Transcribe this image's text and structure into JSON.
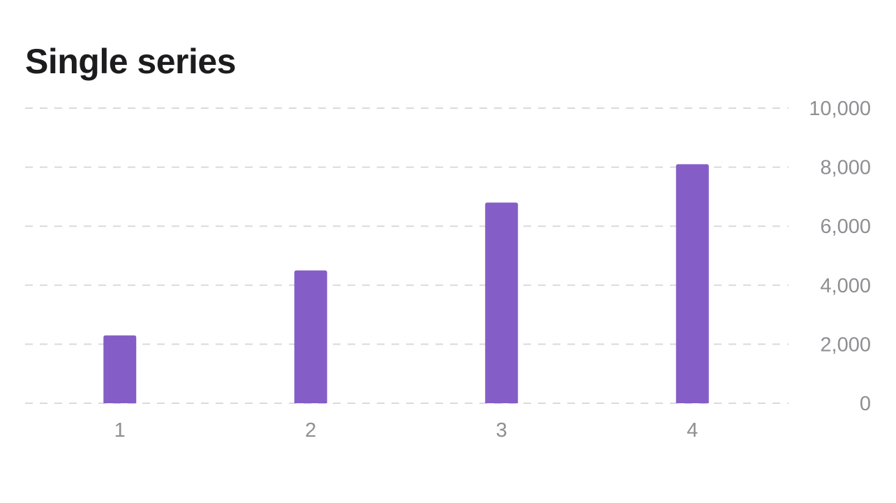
{
  "chart_data": {
    "type": "bar",
    "title": "Single series",
    "xlabel": "",
    "ylabel": "",
    "categories": [
      "1",
      "2",
      "3",
      "4"
    ],
    "series": [
      {
        "values": [
          2300,
          4500,
          6800,
          8100
        ]
      }
    ],
    "ylim": [
      0,
      10000
    ],
    "yticks": [
      0,
      2000,
      4000,
      6000,
      8000,
      10000
    ],
    "ytick_labels": [
      "0",
      "2,000",
      "4,000",
      "6,000",
      "8,000",
      "10,000"
    ],
    "y_axis_position": "right",
    "grid": true,
    "grid_style": "dashed",
    "legend": false,
    "colors": {
      "bar": "#845ec6",
      "grid": "#dadada",
      "tick_text": "#8e8e93",
      "title_text": "#1c1c1e"
    }
  }
}
